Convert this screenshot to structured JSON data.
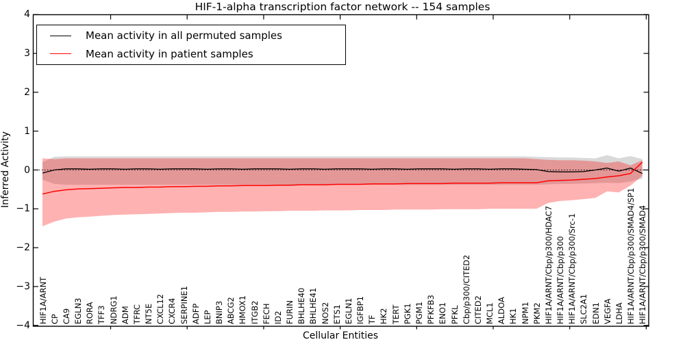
{
  "figure": {
    "title": "HIF-1-alpha transcription factor network -- 154 samples"
  },
  "axes": {
    "ylabel": "Inferred Activity",
    "xlabel": "Cellular Entities",
    "ytick_labels": [
      "4",
      "3",
      "2",
      "1",
      "0",
      "−1",
      "−2",
      "−3",
      "−4"
    ],
    "ytick_values": [
      4,
      3,
      2,
      1,
      0,
      -1,
      -2,
      -3,
      -4
    ]
  },
  "legend": {
    "items": [
      {
        "label": "Mean activity in all permuted samples",
        "color": "#000000"
      },
      {
        "label": "Mean activity in patient samples",
        "color": "#ff0000"
      }
    ]
  },
  "notes": {
    "xlabels_legibility": "rightmost entity labels overlap each other and are partially illegible in the source image"
  },
  "chart_data": {
    "type": "line",
    "title": "HIF-1-alpha transcription factor network -- 154 samples",
    "xlabel": "Cellular Entities",
    "ylabel": "Inferred Activity",
    "ylim": [
      -4,
      4
    ],
    "grid": false,
    "zero_line": "dotted",
    "legend_position": "upper left",
    "categories": [
      "HIF1A/ARNT",
      "CP",
      "CA9",
      "EGLN3",
      "RORA",
      "TFF3",
      "NDRG1",
      "ADM",
      "TFRC",
      "NT5E",
      "CXCL12",
      "CXCR4",
      "SERPINE1",
      "ADFP",
      "LEP",
      "BNIP3",
      "ABCG2",
      "HMOX1",
      "ITGB2",
      "FECH",
      "ID2",
      "FURIN",
      "BHLHE40",
      "BHLHE41",
      "NOS2",
      "ETS1",
      "EGLN1",
      "IGFBP1",
      "TF",
      "HK2",
      "TERT",
      "PGK1",
      "PGM1",
      "PFKFB3",
      "ENO1",
      "PFKL",
      "Cbp/p300/CITED2",
      "CITED2",
      "MCL1",
      "ALDOA",
      "HK1",
      "NPM1",
      "PKM2",
      "HIF1A/ARNT/Cbp/p300/HDAC7",
      "HIF1A/ARNT/Cbp/p300",
      "HIF1A/ARNT/Cbp/p300/Src-1",
      "SLC2A1",
      "EDN1",
      "VEGFA",
      "LDHA",
      "HIF1A/ARNT/Cbp/p300/SMAD4/SP1",
      "HIF1A/ARNT/Cbp/p300/SMAD4"
    ],
    "series": [
      {
        "name": "Mean activity in all permuted samples",
        "color": "#000000",
        "values": [
          -0.08,
          0.0,
          0.03,
          0.03,
          0.02,
          0.03,
          0.03,
          0.02,
          0.03,
          0.03,
          0.02,
          0.03,
          0.03,
          0.03,
          0.02,
          0.03,
          0.03,
          0.02,
          0.03,
          0.03,
          0.03,
          0.02,
          0.03,
          0.03,
          0.02,
          0.03,
          0.03,
          0.03,
          0.02,
          0.03,
          0.03,
          0.02,
          0.03,
          0.03,
          0.03,
          0.02,
          0.03,
          0.03,
          0.02,
          0.03,
          0.03,
          0.02,
          0.01,
          -0.04,
          -0.05,
          -0.05,
          -0.04,
          0.0,
          0.05,
          -0.03,
          0.05,
          -0.09
        ],
        "band_upper": [
          0.2,
          0.34,
          0.35,
          0.35,
          0.35,
          0.35,
          0.35,
          0.35,
          0.35,
          0.35,
          0.35,
          0.35,
          0.35,
          0.35,
          0.35,
          0.35,
          0.35,
          0.35,
          0.35,
          0.35,
          0.35,
          0.35,
          0.35,
          0.35,
          0.35,
          0.35,
          0.35,
          0.35,
          0.35,
          0.35,
          0.35,
          0.35,
          0.35,
          0.35,
          0.35,
          0.35,
          0.35,
          0.35,
          0.35,
          0.35,
          0.35,
          0.35,
          0.34,
          0.33,
          0.32,
          0.32,
          0.31,
          0.3,
          0.38,
          0.3,
          0.36,
          0.28
        ],
        "band_lower": [
          -0.25,
          -0.36,
          -0.38,
          -0.38,
          -0.38,
          -0.38,
          -0.38,
          -0.38,
          -0.38,
          -0.38,
          -0.38,
          -0.38,
          -0.38,
          -0.38,
          -0.38,
          -0.38,
          -0.38,
          -0.38,
          -0.38,
          -0.38,
          -0.38,
          -0.38,
          -0.38,
          -0.38,
          -0.38,
          -0.38,
          -0.38,
          -0.38,
          -0.38,
          -0.38,
          -0.38,
          -0.38,
          -0.38,
          -0.38,
          -0.38,
          -0.38,
          -0.38,
          -0.38,
          -0.38,
          -0.38,
          -0.38,
          -0.38,
          -0.38,
          -0.37,
          -0.36,
          -0.36,
          -0.35,
          -0.34,
          -0.33,
          -0.34,
          -0.3,
          -0.22
        ],
        "band_color": "#808080"
      },
      {
        "name": "Mean activity in patient samples",
        "color": "#ff0000",
        "values": [
          -0.62,
          -0.55,
          -0.51,
          -0.49,
          -0.48,
          -0.47,
          -0.46,
          -0.45,
          -0.45,
          -0.44,
          -0.44,
          -0.43,
          -0.43,
          -0.42,
          -0.42,
          -0.41,
          -0.41,
          -0.4,
          -0.4,
          -0.4,
          -0.39,
          -0.39,
          -0.38,
          -0.38,
          -0.38,
          -0.37,
          -0.37,
          -0.37,
          -0.36,
          -0.36,
          -0.36,
          -0.35,
          -0.35,
          -0.35,
          -0.35,
          -0.34,
          -0.34,
          -0.34,
          -0.34,
          -0.33,
          -0.33,
          -0.33,
          -0.33,
          -0.28,
          -0.27,
          -0.26,
          -0.24,
          -0.22,
          -0.18,
          -0.15,
          -0.09,
          0.2
        ],
        "band_upper": [
          0.3,
          0.28,
          0.3,
          0.3,
          0.3,
          0.3,
          0.3,
          0.3,
          0.3,
          0.3,
          0.3,
          0.3,
          0.3,
          0.3,
          0.3,
          0.3,
          0.3,
          0.3,
          0.3,
          0.3,
          0.3,
          0.3,
          0.3,
          0.3,
          0.3,
          0.3,
          0.3,
          0.3,
          0.3,
          0.3,
          0.3,
          0.3,
          0.3,
          0.3,
          0.3,
          0.3,
          0.3,
          0.3,
          0.3,
          0.3,
          0.3,
          0.3,
          0.28,
          0.26,
          0.25,
          0.25,
          0.24,
          0.22,
          0.18,
          0.22,
          0.12,
          0.25
        ],
        "band_lower": [
          -1.45,
          -1.33,
          -1.25,
          -1.22,
          -1.2,
          -1.18,
          -1.16,
          -1.15,
          -1.14,
          -1.13,
          -1.12,
          -1.11,
          -1.1,
          -1.1,
          -1.09,
          -1.08,
          -1.08,
          -1.07,
          -1.07,
          -1.06,
          -1.06,
          -1.05,
          -1.05,
          -1.05,
          -1.04,
          -1.04,
          -1.04,
          -1.03,
          -1.03,
          -1.03,
          -1.02,
          -1.02,
          -1.02,
          -1.02,
          -1.01,
          -1.01,
          -1.01,
          -1.01,
          -1.0,
          -1.0,
          -1.0,
          -1.0,
          -1.0,
          -0.85,
          -0.8,
          -0.78,
          -0.75,
          -0.72,
          -0.55,
          -0.58,
          -0.4,
          -0.15
        ],
        "band_color": "#ff0000"
      }
    ]
  }
}
